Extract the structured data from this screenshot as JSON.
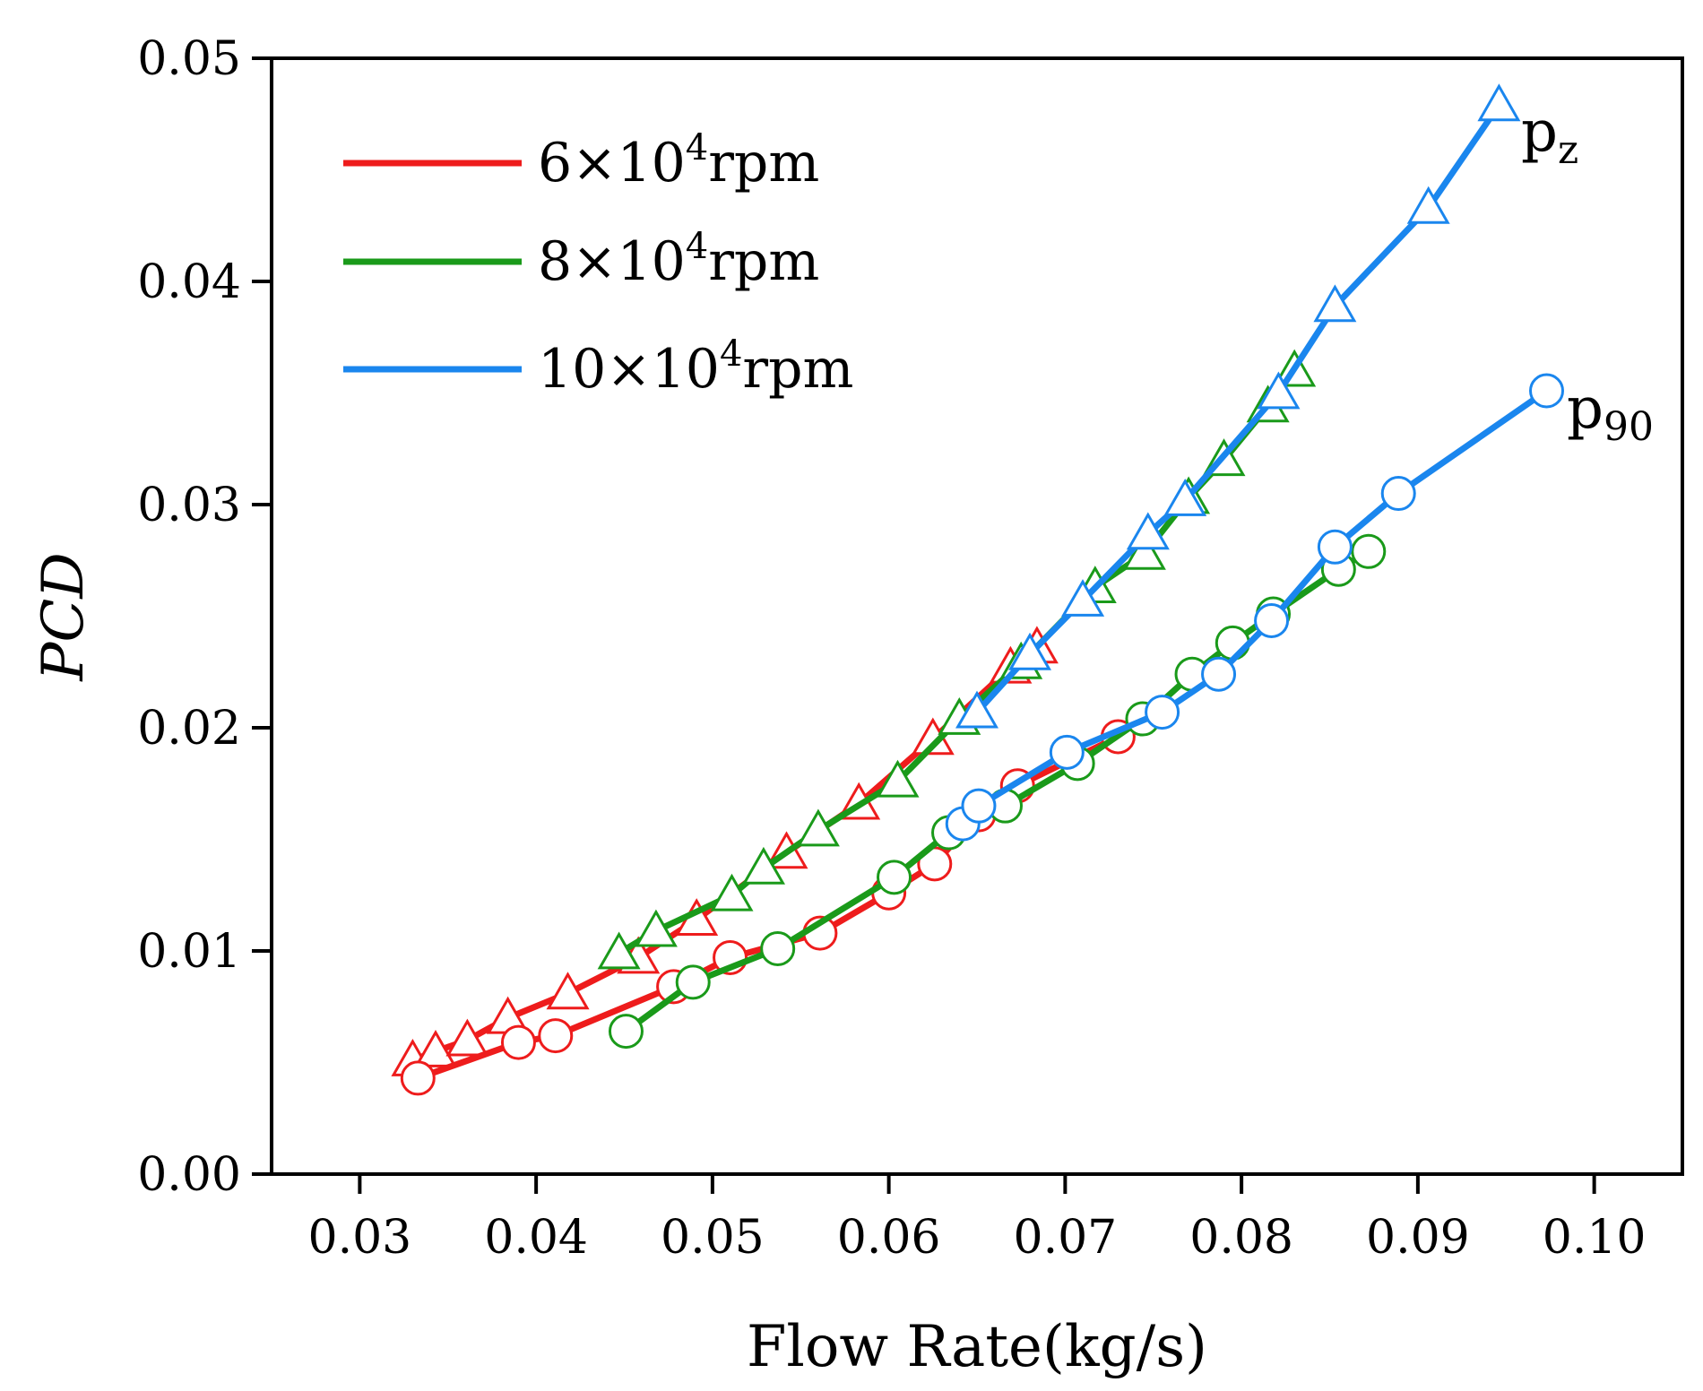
{
  "chart_data": {
    "type": "line",
    "title": "",
    "xlabel": "Flow Rate(kg/s)",
    "ylabel": "PCD",
    "xlim": [
      0.025,
      0.105
    ],
    "ylim": [
      0.0,
      0.05
    ],
    "x_ticks": [
      "0.03",
      "0.04",
      "0.05",
      "0.06",
      "0.07",
      "0.08",
      "0.09",
      "0.10"
    ],
    "y_ticks": [
      "0.00",
      "0.01",
      "0.02",
      "0.03",
      "0.04",
      "0.05"
    ],
    "legend_position": "top-left",
    "legend": [
      {
        "label_base": "6×10",
        "label_sup": "4",
        "label_unit": "rpm",
        "color": "#ee1c1c"
      },
      {
        "label_base": "8×10",
        "label_sup": "4",
        "label_unit": "rpm",
        "color": "#1a9a1a"
      },
      {
        "label_base": "10×10",
        "label_sup": "4",
        "label_unit": "rpm",
        "color": "#1a86ee"
      }
    ],
    "annotations": [
      {
        "text_base": "p",
        "text_sub": "z",
        "near": "end of 10×10^4rpm p_z curve"
      },
      {
        "text_base": "p",
        "text_sub": "90",
        "near": "end of 10×10^4rpm p_90 curve"
      }
    ],
    "series": [
      {
        "name": "6×10^4rpm p_z",
        "color": "#ee1c1c",
        "marker": "triangle",
        "x": [
          0.033,
          0.0343,
          0.0361,
          0.0384,
          0.0418,
          0.0458,
          0.0491,
          0.0542,
          0.0583,
          0.0625,
          0.0669,
          0.0684
        ],
        "y": [
          0.0051,
          0.0055,
          0.006,
          0.007,
          0.0081,
          0.0097,
          0.0114,
          0.0144,
          0.0166,
          0.0195,
          0.0227,
          0.0236
        ]
      },
      {
        "name": "6×10^4rpm p_90",
        "color": "#ee1c1c",
        "marker": "circle",
        "x": [
          0.0333,
          0.039,
          0.0411,
          0.0478,
          0.051,
          0.0561,
          0.06,
          0.0626,
          0.0651,
          0.0673,
          0.073
        ],
        "y": [
          0.0043,
          0.0059,
          0.0062,
          0.0084,
          0.0097,
          0.0108,
          0.0126,
          0.0139,
          0.0161,
          0.0174,
          0.0196
        ]
      },
      {
        "name": "8×10^4rpm p_z",
        "color": "#1a9a1a",
        "marker": "triangle",
        "x": [
          0.0447,
          0.0468,
          0.0511,
          0.0529,
          0.056,
          0.0605,
          0.064,
          0.0675,
          0.0717,
          0.0745,
          0.077,
          0.079,
          0.0815,
          0.083
        ],
        "y": [
          0.0099,
          0.0109,
          0.0125,
          0.0137,
          0.0154,
          0.0176,
          0.0204,
          0.0229,
          0.0263,
          0.0278,
          0.0303,
          0.032,
          0.0344,
          0.036
        ]
      },
      {
        "name": "8×10^4rpm p_90",
        "color": "#1a9a1a",
        "marker": "circle",
        "x": [
          0.0451,
          0.0489,
          0.0537,
          0.0603,
          0.0634,
          0.0666,
          0.0707,
          0.0744,
          0.0772,
          0.0795,
          0.0818,
          0.0855,
          0.0872
        ],
        "y": [
          0.0064,
          0.0086,
          0.0101,
          0.0133,
          0.0153,
          0.0165,
          0.0184,
          0.0204,
          0.0224,
          0.0238,
          0.0251,
          0.0271,
          0.0279
        ]
      },
      {
        "name": "10×10^4rpm p_z",
        "color": "#1a86ee",
        "marker": "triangle",
        "x": [
          0.065,
          0.068,
          0.071,
          0.0747,
          0.0768,
          0.0821,
          0.0853,
          0.0906,
          0.0946
        ],
        "y": [
          0.0207,
          0.0233,
          0.0257,
          0.0287,
          0.0302,
          0.035,
          0.0389,
          0.0433,
          0.0479
        ]
      },
      {
        "name": "10×10^4rpm p_90",
        "color": "#1a86ee",
        "marker": "circle",
        "x": [
          0.0642,
          0.0651,
          0.0701,
          0.0755,
          0.0787,
          0.0817,
          0.0853,
          0.0889,
          0.0973
        ],
        "y": [
          0.0157,
          0.0165,
          0.0189,
          0.0207,
          0.0224,
          0.0248,
          0.0281,
          0.0305,
          0.0351
        ]
      }
    ]
  }
}
